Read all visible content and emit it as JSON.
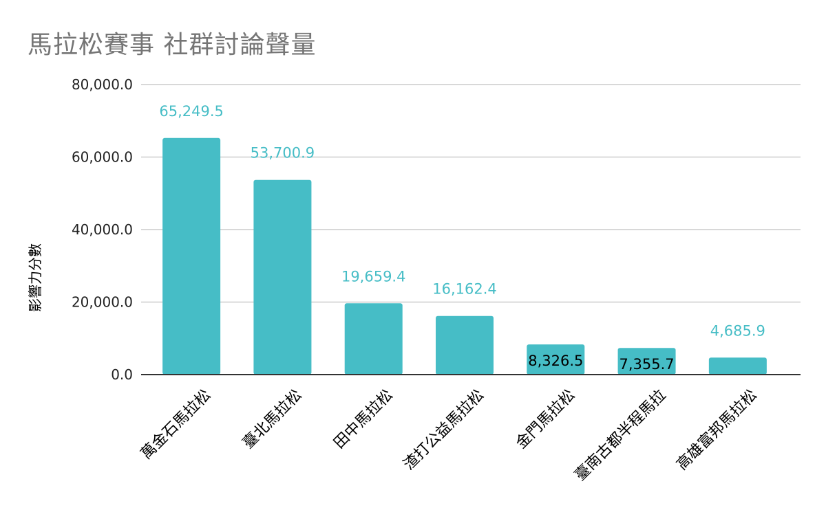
{
  "chart_data": {
    "type": "bar",
    "title": "馬拉松賽事 社群討論聲量",
    "xlabel": "",
    "ylabel": "影響力分數",
    "ylim": [
      0,
      80000
    ],
    "yticks": [
      "0.0",
      "20,000.0",
      "40,000.0",
      "60,000.0",
      "80,000.0"
    ],
    "ytick_values": [
      0,
      20000,
      40000,
      60000,
      80000
    ],
    "grid": true,
    "legend": "none",
    "categories": [
      "萬金石馬拉松",
      "臺北馬拉松",
      "田中馬拉松",
      "渣打公益馬拉松",
      "金門馬拉松",
      "臺南古都半程馬拉",
      "高雄富邦馬拉松"
    ],
    "values": [
      65249.5,
      53700.9,
      19659.4,
      16162.4,
      8326.5,
      7355.7,
      4685.9
    ],
    "value_labels": [
      "65,249.5",
      "53,700.9",
      "19,659.4",
      "16,162.4",
      "8,326.5",
      "7,355.7",
      "4,685.9"
    ],
    "label_inside": [
      false,
      false,
      false,
      false,
      true,
      true,
      false
    ],
    "colors": {
      "bar": "#46bdc6",
      "label_outside": "#46bdc6",
      "label_inside": "#000000",
      "grid": "#cccccc",
      "axis": "#333333",
      "title": "#757575"
    }
  }
}
